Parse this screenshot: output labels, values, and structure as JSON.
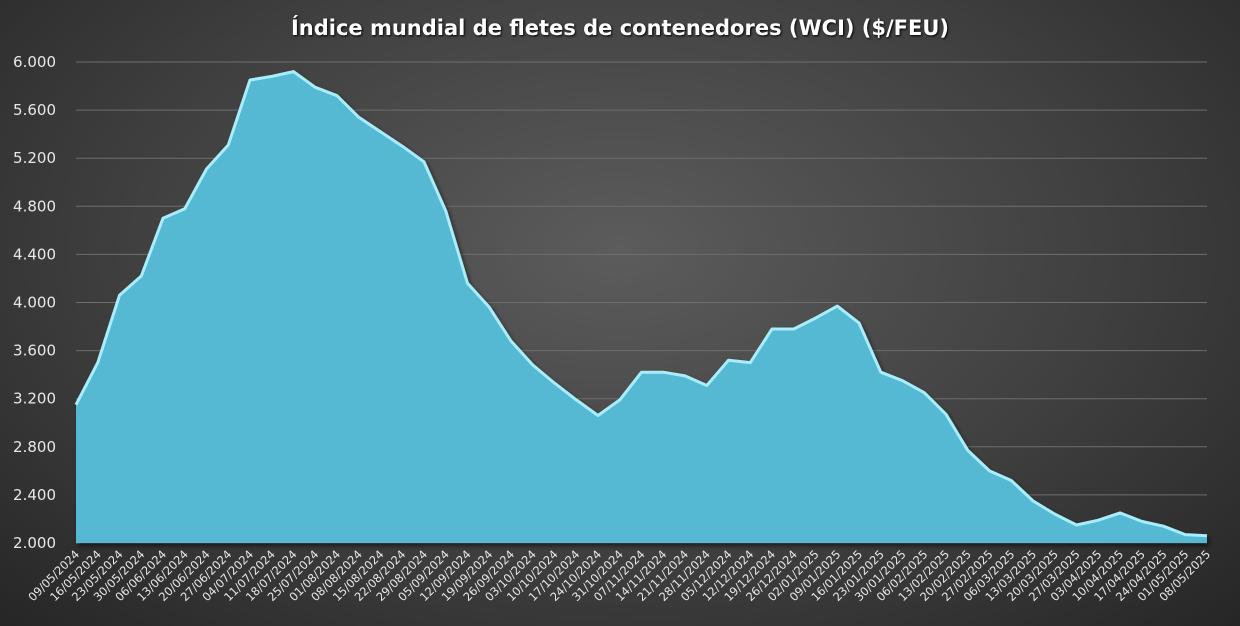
{
  "chart_data": {
    "type": "area",
    "title": "Índice mundial de fletes de contenedores (WCI) ($/FEU)",
    "xlabel": "",
    "ylabel": "",
    "ylim": [
      2000,
      6000
    ],
    "yticks": [
      2000,
      2400,
      2800,
      3200,
      3600,
      4000,
      4400,
      4800,
      5200,
      5600,
      6000
    ],
    "ytick_labels": [
      "2.000",
      "2.400",
      "2.800",
      "3.200",
      "3.600",
      "4.000",
      "4.400",
      "4.800",
      "5.200",
      "5.600",
      "6.000"
    ],
    "grid": true,
    "legend": "none",
    "colors": {
      "area": "#55b9d4",
      "line": "#a9ecfa",
      "grid": "#6e6e6e"
    },
    "x": [
      "09/05/2024",
      "16/05/2024",
      "23/05/2024",
      "30/05/2024",
      "06/06/2024",
      "13/06/2024",
      "20/06/2024",
      "27/06/2024",
      "04/07/2024",
      "11/07/2024",
      "18/07/2024",
      "25/07/2024",
      "01/08/2024",
      "08/08/2024",
      "15/08/2024",
      "22/08/2024",
      "29/08/2024",
      "05/09/2024",
      "12/09/2024",
      "19/09/2024",
      "26/09/2024",
      "03/10/2024",
      "10/10/2024",
      "17/10/2024",
      "24/10/2024",
      "31/10/2024",
      "07/11/2024",
      "14/11/2024",
      "21/11/2024",
      "28/11/2024",
      "05/12/2024",
      "12/12/2024",
      "19/12/2024",
      "26/12/2024",
      "02/01/2025",
      "09/01/2025",
      "16/01/2025",
      "23/01/2025",
      "30/01/2025",
      "06/02/2025",
      "13/02/2025",
      "20/02/2025",
      "27/02/2025",
      "06/03/2025",
      "13/03/2025",
      "20/03/2025",
      "27/03/2025",
      "03/04/2025",
      "10/04/2025",
      "17/04/2025",
      "24/04/2025",
      "01/05/2025",
      "08/05/2025"
    ],
    "series": [
      {
        "values": [
          3150,
          3500,
          4060,
          4220,
          4700,
          4780,
          5110,
          5310,
          5850,
          5880,
          5920,
          5790,
          5720,
          5540,
          5420,
          5300,
          5170,
          4760,
          4160,
          3960,
          3680,
          3480,
          3330,
          3190,
          3060,
          3190,
          3420,
          3420,
          3390,
          3310,
          3520,
          3500,
          3780,
          3780,
          3870,
          3970,
          3830,
          3420,
          3350,
          3250,
          3070,
          2770,
          2600,
          2520,
          2350,
          2240,
          2150,
          2190,
          2250,
          2180,
          2140,
          2070,
          2060
        ]
      }
    ]
  }
}
